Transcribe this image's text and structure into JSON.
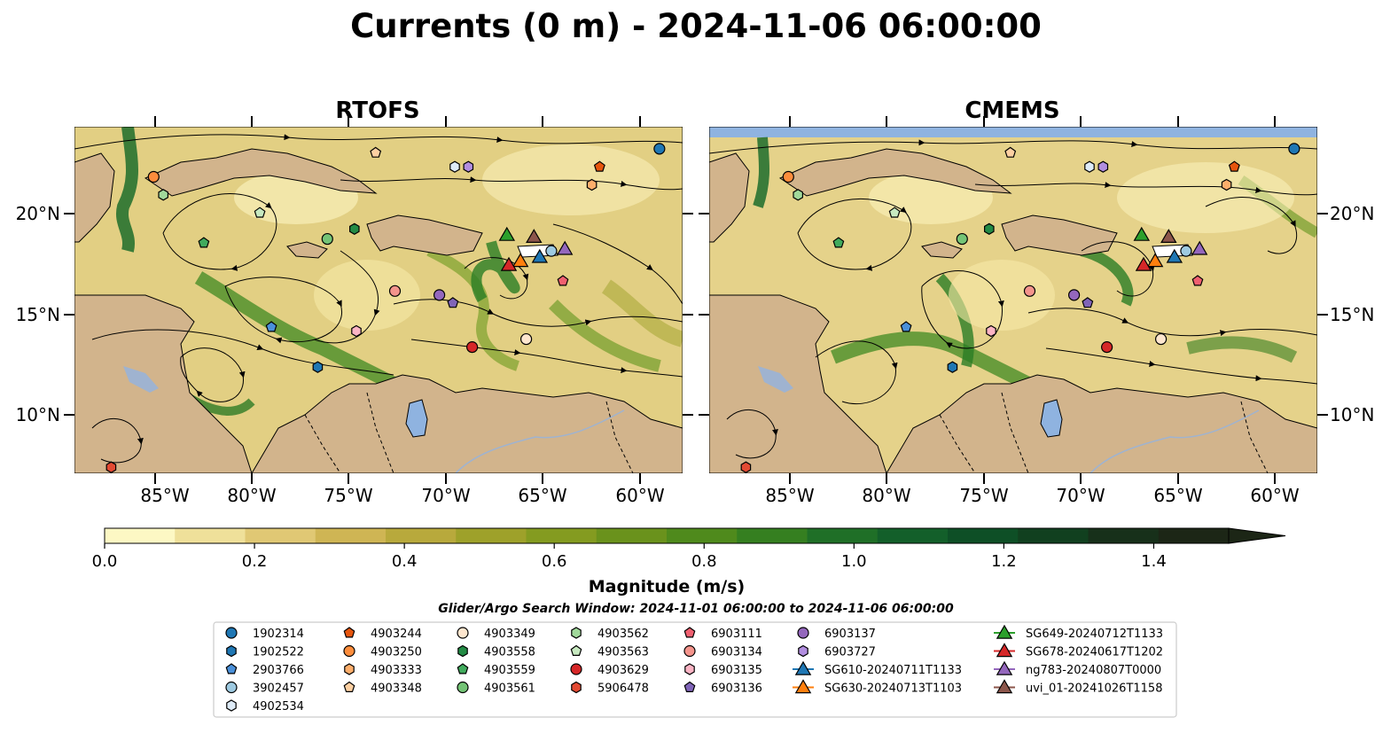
{
  "figure": {
    "title": "Currents (0 m) - 2024-11-06 06:00:00",
    "panels": [
      {
        "title": "RTOFS"
      },
      {
        "title": "CMEMS"
      }
    ],
    "lat_ticks": [
      "10°N",
      "15°N",
      "20°N"
    ],
    "lon_ticks": [
      "85°W",
      "80°W",
      "75°W",
      "70°W",
      "65°W",
      "60°W"
    ],
    "extent": {
      "lon_min": -89.5,
      "lon_max": -58.0,
      "lat_min": 7.0,
      "lat_max": 24.3
    }
  },
  "colorbar": {
    "label": "Magnitude (m/s)",
    "min": 0.0,
    "max": 1.5,
    "extend": "max",
    "ticks": [
      "0.0",
      "0.2",
      "0.4",
      "0.6",
      "0.8",
      "1.0",
      "1.2",
      "1.4"
    ],
    "colors": [
      "#fdf8c4",
      "#efe09a",
      "#e0c874",
      "#cfb554",
      "#b8a93c",
      "#9ea12a",
      "#849b20",
      "#6a921c",
      "#4f8a1c",
      "#357f20",
      "#1f6f27",
      "#135f2a",
      "#0e4f26",
      "#11401f",
      "#17301a",
      "#1c2616"
    ]
  },
  "search_window": "Glider/Argo Search Window: 2024-11-01 06:00:00 to 2024-11-06 06:00:00",
  "colors": {
    "land": "#d2b48c",
    "ocean_top": "#8fb3e0",
    "lake": "#8fb3e0"
  },
  "legend": {
    "columns": [
      [
        {
          "label": "1902314",
          "marker": "circle",
          "color": "#1f77b4"
        },
        {
          "label": "1902522",
          "marker": "hexagon",
          "color": "#1f77b4"
        },
        {
          "label": "2903766",
          "marker": "pentagon",
          "color": "#4a90d9"
        },
        {
          "label": "3902457",
          "marker": "circle",
          "color": "#9ecae1"
        },
        {
          "label": "4902534",
          "marker": "hexagon",
          "color": "#deebf7"
        }
      ],
      [
        {
          "label": "4903244",
          "marker": "pentagon",
          "color": "#e6550d"
        },
        {
          "label": "4903250",
          "marker": "circle",
          "color": "#fd8d3c"
        },
        {
          "label": "4903333",
          "marker": "hexagon",
          "color": "#fdae6b"
        },
        {
          "label": "4903348",
          "marker": "pentagon",
          "color": "#fdd0a2"
        }
      ],
      [
        {
          "label": "4903349",
          "marker": "circle",
          "color": "#fee6ce"
        },
        {
          "label": "4903558",
          "marker": "hexagon",
          "color": "#238b45"
        },
        {
          "label": "4903559",
          "marker": "pentagon",
          "color": "#41ab5d"
        },
        {
          "label": "4903561",
          "marker": "circle",
          "color": "#74c476"
        }
      ],
      [
        {
          "label": "4903562",
          "marker": "hexagon",
          "color": "#a1d99b"
        },
        {
          "label": "4903563",
          "marker": "pentagon",
          "color": "#c7e9c0"
        },
        {
          "label": "4903629",
          "marker": "circle",
          "color": "#d62728"
        },
        {
          "label": "5906478",
          "marker": "hexagon",
          "color": "#e34a33"
        }
      ],
      [
        {
          "label": "6903111",
          "marker": "pentagon",
          "color": "#f06070"
        },
        {
          "label": "6903134",
          "marker": "circle",
          "color": "#f4948c"
        },
        {
          "label": "6903135",
          "marker": "hexagon",
          "color": "#fbb4c4"
        },
        {
          "label": "6903136",
          "marker": "pentagon",
          "color": "#8064b8"
        }
      ],
      [
        {
          "label": "6903137",
          "marker": "circle",
          "color": "#9467bd"
        },
        {
          "label": "6903727",
          "marker": "hexagon",
          "color": "#b28ee0"
        },
        {
          "label": "SG610-20240711T1133",
          "marker": "triangle",
          "color": "#1f77b4"
        },
        {
          "label": "SG630-20240713T1103",
          "marker": "triangle",
          "color": "#ff7f0e"
        }
      ],
      [
        {
          "label": "SG649-20240712T1133",
          "marker": "triangle",
          "color": "#2ca02c"
        },
        {
          "label": "SG678-20240617T1202",
          "marker": "triangle",
          "color": "#d62728"
        },
        {
          "label": "ng783-20240807T0000",
          "marker": "triangle",
          "color": "#9467bd"
        },
        {
          "label": "uvi_01-20241026T1158",
          "marker": "triangle",
          "color": "#8c564b"
        }
      ]
    ]
  },
  "markers": [
    {
      "id": "1902314",
      "lon": -59.2,
      "lat": 23.2,
      "marker": "circle",
      "color": "#1f77b4"
    },
    {
      "id": "1902522",
      "lon": -76.9,
      "lat": 12.3,
      "marker": "hexagon",
      "color": "#1f77b4"
    },
    {
      "id": "2903766",
      "lon": -79.3,
      "lat": 14.3,
      "marker": "pentagon",
      "color": "#4a90d9"
    },
    {
      "id": "3902457",
      "lon": -64.8,
      "lat": 18.1,
      "marker": "circle",
      "color": "#9ecae1"
    },
    {
      "id": "4902534",
      "lon": -69.8,
      "lat": 22.3,
      "marker": "hexagon",
      "color": "#deebf7"
    },
    {
      "id": "4903244",
      "lon": -62.3,
      "lat": 22.3,
      "marker": "pentagon",
      "color": "#e6550d"
    },
    {
      "id": "4903250",
      "lon": -85.4,
      "lat": 21.8,
      "marker": "circle",
      "color": "#fd8d3c"
    },
    {
      "id": "4903333",
      "lon": -62.7,
      "lat": 21.4,
      "marker": "hexagon",
      "color": "#fdae6b"
    },
    {
      "id": "4903348",
      "lon": -73.9,
      "lat": 23.0,
      "marker": "pentagon",
      "color": "#fdd0a2"
    },
    {
      "id": "4903349",
      "lon": -66.1,
      "lat": 13.7,
      "marker": "circle",
      "color": "#fee6ce"
    },
    {
      "id": "4903558",
      "lon": -75.0,
      "lat": 19.2,
      "marker": "hexagon",
      "color": "#238b45"
    },
    {
      "id": "4903559",
      "lon": -82.8,
      "lat": 18.5,
      "marker": "pentagon",
      "color": "#41ab5d"
    },
    {
      "id": "4903561",
      "lon": -76.4,
      "lat": 18.7,
      "marker": "circle",
      "color": "#74c476"
    },
    {
      "id": "4903562",
      "lon": -84.9,
      "lat": 20.9,
      "marker": "hexagon",
      "color": "#a1d99b"
    },
    {
      "id": "4903563",
      "lon": -79.9,
      "lat": 20.0,
      "marker": "pentagon",
      "color": "#c7e9c0"
    },
    {
      "id": "4903629",
      "lon": -68.9,
      "lat": 13.3,
      "marker": "circle",
      "color": "#d62728"
    },
    {
      "id": "5906478",
      "lon": -87.6,
      "lat": 7.3,
      "marker": "hexagon",
      "color": "#e34a33"
    },
    {
      "id": "6903111",
      "lon": -64.2,
      "lat": 16.6,
      "marker": "pentagon",
      "color": "#f06070"
    },
    {
      "id": "6903134",
      "lon": -72.9,
      "lat": 16.1,
      "marker": "circle",
      "color": "#f4948c"
    },
    {
      "id": "6903135",
      "lon": -74.9,
      "lat": 14.1,
      "marker": "hexagon",
      "color": "#fbb4c4"
    },
    {
      "id": "6903136",
      "lon": -69.9,
      "lat": 15.5,
      "marker": "pentagon",
      "color": "#8064b8"
    },
    {
      "id": "6903137",
      "lon": -70.6,
      "lat": 15.9,
      "marker": "circle",
      "color": "#9467bd"
    },
    {
      "id": "6903727",
      "lon": -69.1,
      "lat": 22.3,
      "marker": "hexagon",
      "color": "#b28ee0"
    },
    {
      "id": "SG610",
      "lon": -65.4,
      "lat": 17.8,
      "marker": "triangle",
      "color": "#1f77b4"
    },
    {
      "id": "SG630",
      "lon": -66.4,
      "lat": 17.6,
      "marker": "triangle",
      "color": "#ff7f0e"
    },
    {
      "id": "SG649",
      "lon": -67.1,
      "lat": 18.9,
      "marker": "triangle",
      "color": "#2ca02c"
    },
    {
      "id": "SG678",
      "lon": -67.0,
      "lat": 17.4,
      "marker": "triangle",
      "color": "#d62728"
    },
    {
      "id": "ng783",
      "lon": -64.1,
      "lat": 18.2,
      "marker": "triangle",
      "color": "#9467bd"
    },
    {
      "id": "uvi_01",
      "lon": -65.7,
      "lat": 18.8,
      "marker": "triangle",
      "color": "#8c564b"
    }
  ]
}
